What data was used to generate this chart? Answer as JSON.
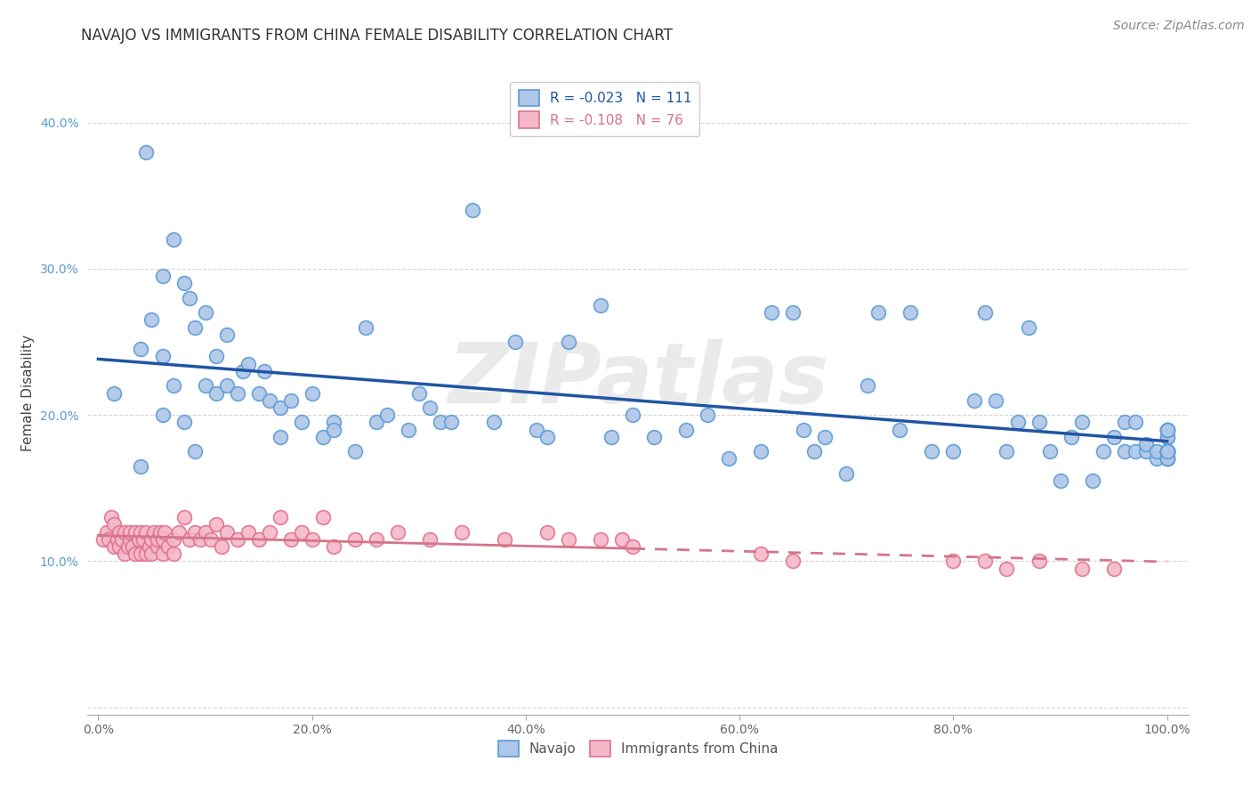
{
  "title": "NAVAJO VS IMMIGRANTS FROM CHINA FEMALE DISABILITY CORRELATION CHART",
  "source": "Source: ZipAtlas.com",
  "ylabel": "Female Disability",
  "xlim": [
    -0.01,
    1.02
  ],
  "ylim": [
    -0.005,
    0.435
  ],
  "xticks": [
    0.0,
    0.2,
    0.4,
    0.6,
    0.8,
    1.0
  ],
  "xtick_labels": [
    "0.0%",
    "20.0%",
    "40.0%",
    "60.0%",
    "80.0%",
    "100.0%"
  ],
  "yticks": [
    0.0,
    0.1,
    0.2,
    0.3,
    0.4
  ],
  "ytick_labels": [
    "",
    "10.0%",
    "20.0%",
    "30.0%",
    "40.0%"
  ],
  "navajo_R": -0.023,
  "navajo_N": 111,
  "china_R": -0.108,
  "china_N": 76,
  "navajo_color": "#aec6e8",
  "navajo_edge_color": "#5b9bd5",
  "china_color": "#f4b8c8",
  "china_edge_color": "#e07090",
  "navajo_line_color": "#2055a4",
  "china_line_color": "#d4758a",
  "watermark": "ZIPatlas",
  "background_color": "#ffffff",
  "grid_color": "#cccccc",
  "title_fontsize": 12,
  "axis_label_fontsize": 11,
  "tick_fontsize": 10,
  "legend_fontsize": 11,
  "source_fontsize": 10,
  "navajo_x": [
    0.015,
    0.04,
    0.04,
    0.045,
    0.05,
    0.06,
    0.06,
    0.06,
    0.07,
    0.07,
    0.08,
    0.08,
    0.085,
    0.09,
    0.09,
    0.1,
    0.1,
    0.11,
    0.11,
    0.12,
    0.12,
    0.13,
    0.135,
    0.14,
    0.15,
    0.155,
    0.16,
    0.17,
    0.17,
    0.18,
    0.19,
    0.2,
    0.21,
    0.22,
    0.22,
    0.24,
    0.25,
    0.26,
    0.27,
    0.29,
    0.3,
    0.31,
    0.32,
    0.33,
    0.35,
    0.37,
    0.39,
    0.41,
    0.42,
    0.44,
    0.47,
    0.48,
    0.5,
    0.52,
    0.55,
    0.57,
    0.59,
    0.62,
    0.63,
    0.65,
    0.66,
    0.67,
    0.68,
    0.7,
    0.72,
    0.73,
    0.75,
    0.76,
    0.78,
    0.8,
    0.82,
    0.83,
    0.84,
    0.85,
    0.86,
    0.87,
    0.88,
    0.89,
    0.9,
    0.91,
    0.92,
    0.93,
    0.94,
    0.95,
    0.96,
    0.96,
    0.97,
    0.97,
    0.98,
    0.98,
    0.99,
    0.99,
    1.0,
    1.0,
    1.0,
    1.0,
    1.0,
    1.0,
    1.0,
    1.0,
    1.0,
    1.0,
    1.0,
    1.0,
    1.0,
    1.0,
    1.0,
    1.0,
    1.0,
    1.0,
    1.0
  ],
  "navajo_y": [
    0.215,
    0.245,
    0.165,
    0.38,
    0.265,
    0.24,
    0.2,
    0.295,
    0.22,
    0.32,
    0.195,
    0.29,
    0.28,
    0.175,
    0.26,
    0.27,
    0.22,
    0.24,
    0.215,
    0.255,
    0.22,
    0.215,
    0.23,
    0.235,
    0.215,
    0.23,
    0.21,
    0.205,
    0.185,
    0.21,
    0.195,
    0.215,
    0.185,
    0.195,
    0.19,
    0.175,
    0.26,
    0.195,
    0.2,
    0.19,
    0.215,
    0.205,
    0.195,
    0.195,
    0.34,
    0.195,
    0.25,
    0.19,
    0.185,
    0.25,
    0.275,
    0.185,
    0.2,
    0.185,
    0.19,
    0.2,
    0.17,
    0.175,
    0.27,
    0.27,
    0.19,
    0.175,
    0.185,
    0.16,
    0.22,
    0.27,
    0.19,
    0.27,
    0.175,
    0.175,
    0.21,
    0.27,
    0.21,
    0.175,
    0.195,
    0.26,
    0.195,
    0.175,
    0.155,
    0.185,
    0.195,
    0.155,
    0.175,
    0.185,
    0.175,
    0.195,
    0.175,
    0.195,
    0.175,
    0.18,
    0.17,
    0.175,
    0.175,
    0.175,
    0.17,
    0.185,
    0.17,
    0.19,
    0.19,
    0.175,
    0.17,
    0.185,
    0.175,
    0.175,
    0.19,
    0.175,
    0.175,
    0.175,
    0.17,
    0.175,
    0.19
  ],
  "china_x": [
    0.005,
    0.008,
    0.01,
    0.012,
    0.015,
    0.015,
    0.018,
    0.02,
    0.02,
    0.022,
    0.025,
    0.025,
    0.028,
    0.03,
    0.03,
    0.032,
    0.035,
    0.035,
    0.038,
    0.04,
    0.04,
    0.042,
    0.045,
    0.045,
    0.048,
    0.05,
    0.05,
    0.052,
    0.055,
    0.055,
    0.058,
    0.06,
    0.06,
    0.062,
    0.065,
    0.07,
    0.07,
    0.075,
    0.08,
    0.085,
    0.09,
    0.095,
    0.1,
    0.105,
    0.11,
    0.115,
    0.12,
    0.13,
    0.14,
    0.15,
    0.16,
    0.17,
    0.18,
    0.19,
    0.2,
    0.21,
    0.22,
    0.24,
    0.26,
    0.28,
    0.31,
    0.34,
    0.38,
    0.42,
    0.44,
    0.47,
    0.49,
    0.5,
    0.62,
    0.65,
    0.8,
    0.83,
    0.85,
    0.88,
    0.92,
    0.95
  ],
  "china_y": [
    0.115,
    0.12,
    0.115,
    0.13,
    0.11,
    0.125,
    0.115,
    0.12,
    0.11,
    0.115,
    0.105,
    0.12,
    0.11,
    0.115,
    0.12,
    0.11,
    0.105,
    0.12,
    0.115,
    0.105,
    0.12,
    0.115,
    0.105,
    0.12,
    0.11,
    0.105,
    0.115,
    0.12,
    0.11,
    0.115,
    0.12,
    0.105,
    0.115,
    0.12,
    0.11,
    0.105,
    0.115,
    0.12,
    0.13,
    0.115,
    0.12,
    0.115,
    0.12,
    0.115,
    0.125,
    0.11,
    0.12,
    0.115,
    0.12,
    0.115,
    0.12,
    0.13,
    0.115,
    0.12,
    0.115,
    0.13,
    0.11,
    0.115,
    0.115,
    0.12,
    0.115,
    0.12,
    0.115,
    0.12,
    0.115,
    0.115,
    0.115,
    0.11,
    0.105,
    0.1,
    0.1,
    0.1,
    0.095,
    0.1,
    0.095,
    0.095
  ]
}
